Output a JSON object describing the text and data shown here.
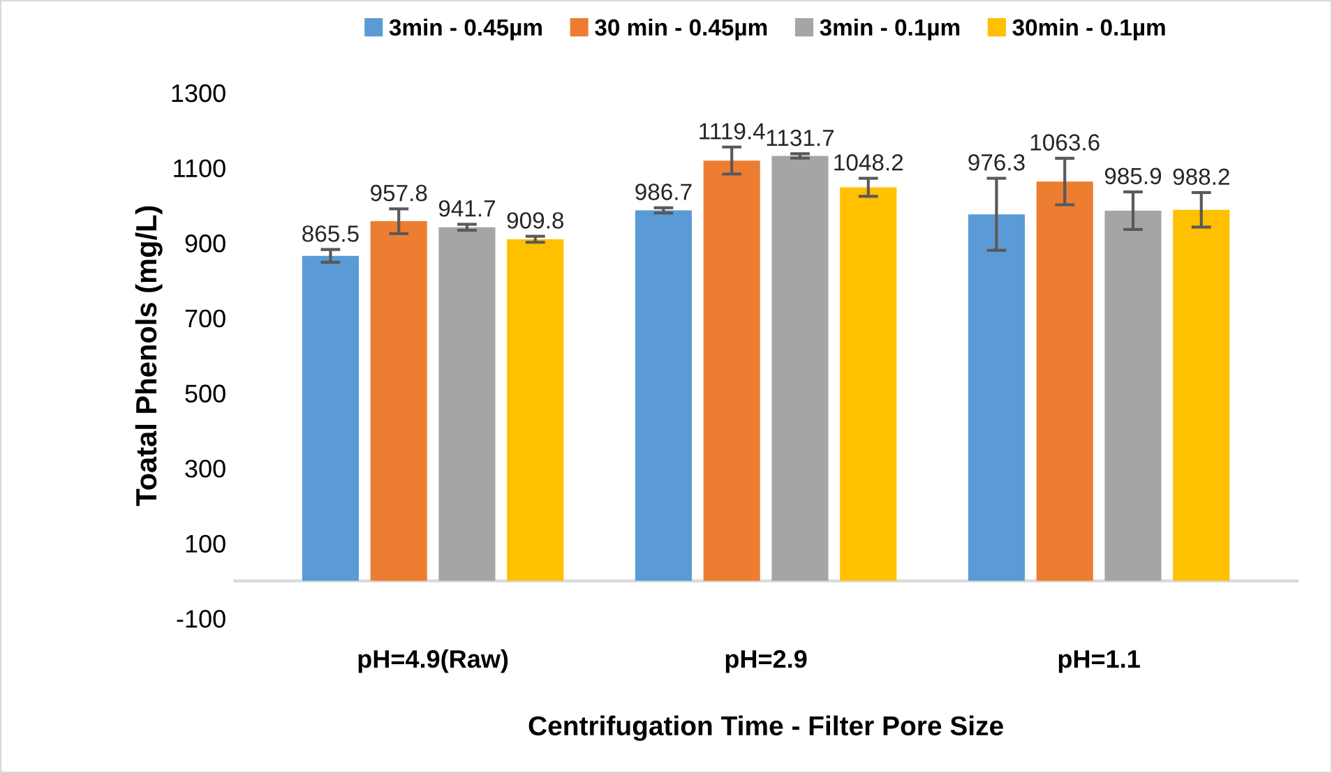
{
  "chart_data": {
    "type": "bar",
    "xlabel": "Centrifugation Time - Filter Pore Size",
    "ylabel": "Toatal Phenols (mg/L)",
    "categories": [
      "pH=4.9(Raw)",
      "pH=2.9",
      "pH=1.1"
    ],
    "series": [
      {
        "name": "3min - 0.45µm",
        "color": "#5b9bd5",
        "values": [
          865.5,
          986.7,
          976.3
        ],
        "errors": [
          17,
          7,
          96
        ]
      },
      {
        "name": "30 min - 0.45µm",
        "color": "#ed7d31",
        "values": [
          957.8,
          1119.4,
          1063.6
        ],
        "errors": [
          33,
          36,
          62
        ]
      },
      {
        "name": "3min - 0.1µm",
        "color": "#a5a5a5",
        "values": [
          941.7,
          1131.7,
          985.9
        ],
        "errors": [
          8,
          6,
          50
        ]
      },
      {
        "name": "30min - 0.1µm",
        "color": "#ffc000",
        "values": [
          909.8,
          1048.2,
          988.2
        ],
        "errors": [
          8,
          24,
          46
        ]
      }
    ],
    "ylim": [
      -100,
      1300
    ],
    "yticks": [
      -100,
      100,
      300,
      500,
      700,
      900,
      1100,
      1300
    ],
    "data_labels": true,
    "grid": false,
    "legend": "top"
  }
}
